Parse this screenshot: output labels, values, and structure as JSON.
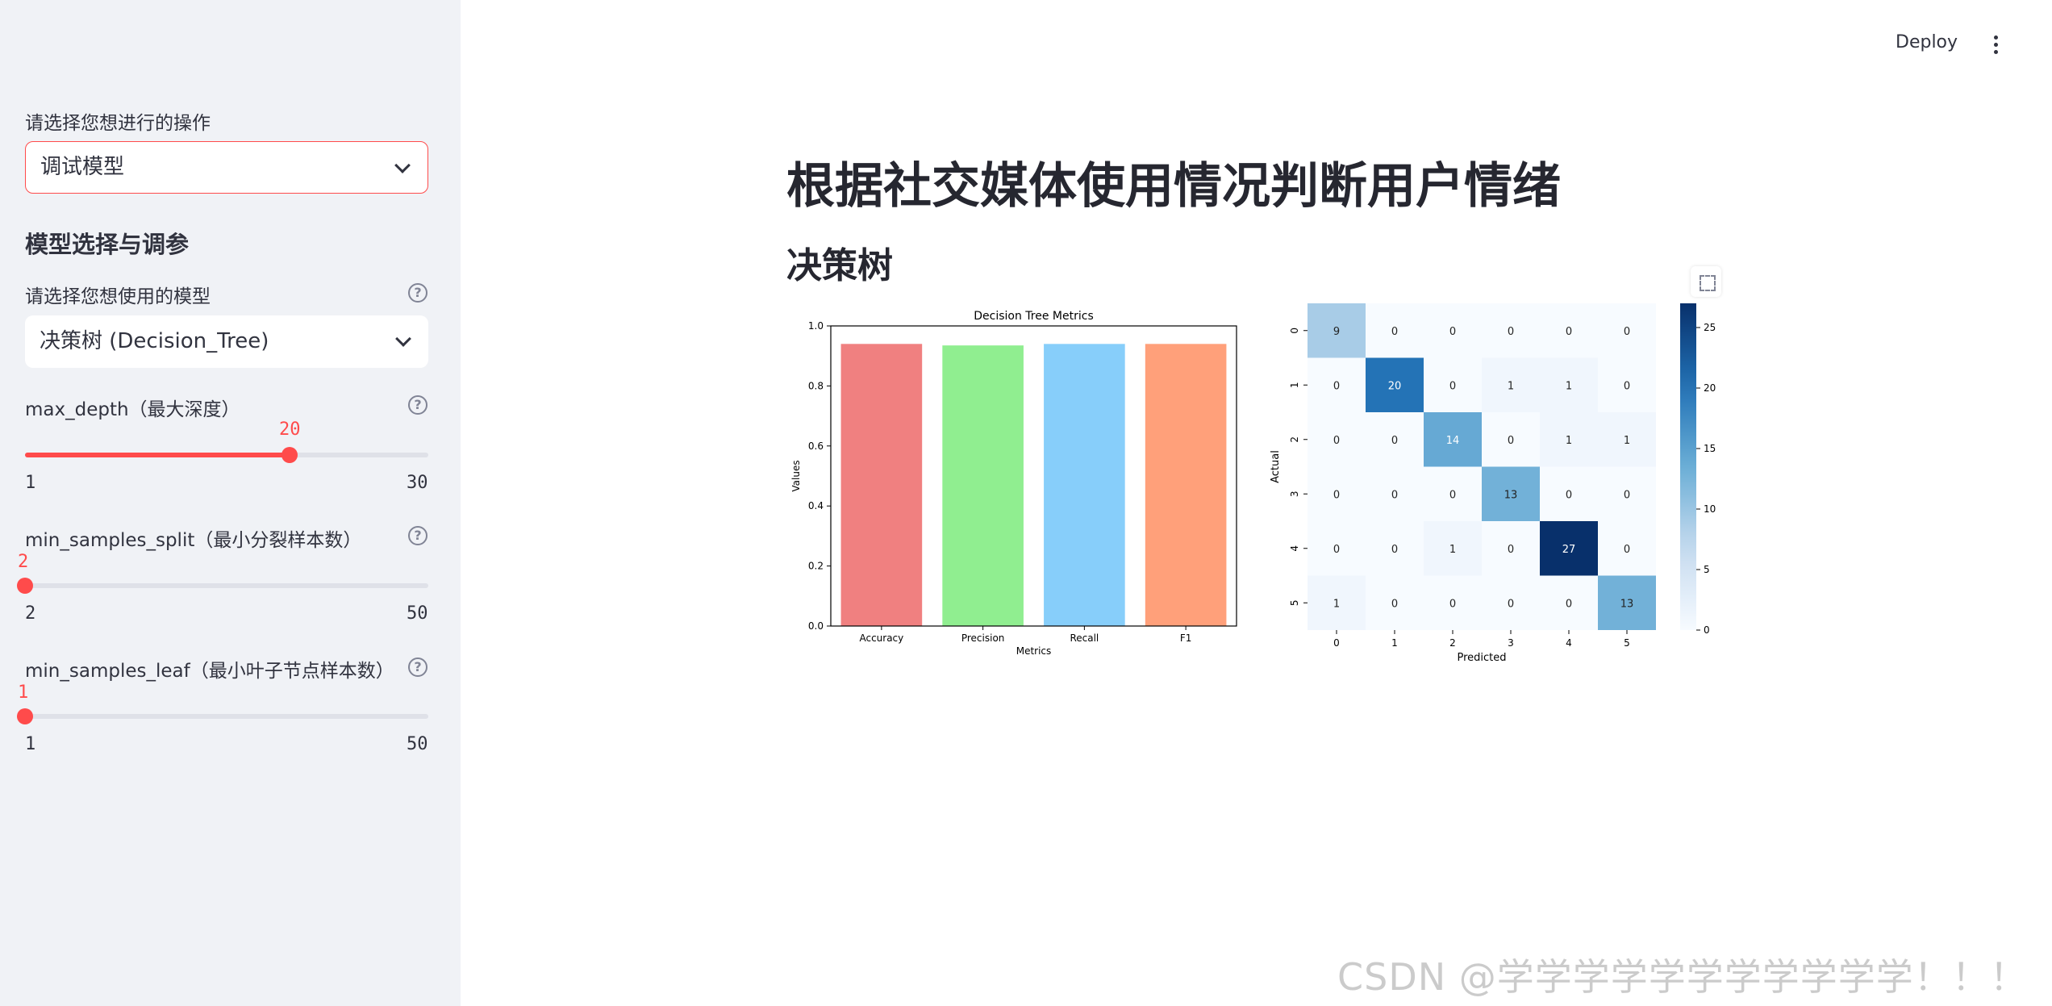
{
  "sidebar": {
    "operation_label": "请选择您想进行的操作",
    "operation_value": "调试模型",
    "section_title": "模型选择与调参",
    "model_label": "请选择您想使用的模型",
    "model_value": "决策树 (Decision_Tree)",
    "sliders": [
      {
        "label": "max_depth（最大深度）",
        "value": "20",
        "min": "1",
        "max": "30",
        "fraction": 0.655
      },
      {
        "label": "min_samples_split（最小分裂样本数）",
        "value": "2",
        "min": "2",
        "max": "50",
        "fraction": 0.0
      },
      {
        "label": "min_samples_leaf（最小叶子节点样本数）",
        "value": "1",
        "min": "1",
        "max": "50",
        "fraction": 0.0
      }
    ],
    "help_glyph": "?"
  },
  "header": {
    "deploy_label": "Deploy",
    "menu_icon": "kebab-menu-icon"
  },
  "main": {
    "title": "根据社交媒体使用情况判断用户情绪",
    "subtitle": "决策树",
    "fullscreen_icon": "fullscreen-icon"
  },
  "watermark": "CSDN @学学学学学学学学学学学！！！",
  "chart_data": [
    {
      "type": "bar",
      "title": "Decision Tree Metrics",
      "xlabel": "Metrics",
      "ylabel": "Values",
      "categories": [
        "Accuracy",
        "Precision",
        "Recall",
        "F1"
      ],
      "values": [
        0.94,
        0.935,
        0.94,
        0.94
      ],
      "colors": [
        "#f08080",
        "#90ee90",
        "#87cefa",
        "#ffa07a"
      ],
      "ylim": [
        0,
        1.0
      ],
      "yticks": [
        "0.0",
        "0.2",
        "0.4",
        "0.6",
        "0.8",
        "1.0"
      ]
    },
    {
      "type": "heatmap",
      "xlabel": "Predicted",
      "ylabel": "Actual",
      "labels": [
        "0",
        "1",
        "2",
        "3",
        "4",
        "5"
      ],
      "matrix": [
        [
          9,
          0,
          0,
          0,
          0,
          0
        ],
        [
          0,
          20,
          0,
          1,
          1,
          0
        ],
        [
          0,
          0,
          14,
          0,
          1,
          1
        ],
        [
          0,
          0,
          0,
          13,
          0,
          0
        ],
        [
          0,
          0,
          1,
          0,
          27,
          0
        ],
        [
          1,
          0,
          0,
          0,
          0,
          13
        ]
      ],
      "colormap": "Blues",
      "colorbar_ticks": [
        "0",
        "5",
        "10",
        "15",
        "20",
        "25"
      ],
      "vmax": 27
    }
  ]
}
